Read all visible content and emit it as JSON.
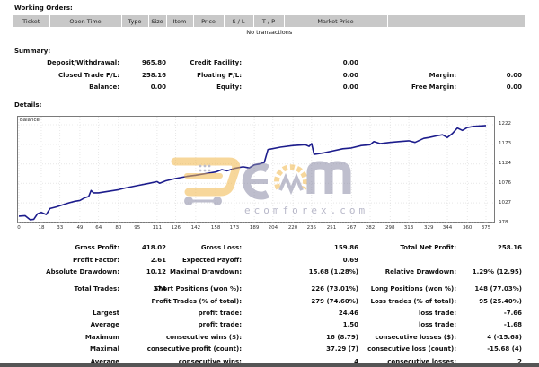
{
  "working_orders": {
    "title": "Working Orders:",
    "columns": [
      "Ticket",
      "Open Time",
      "Type",
      "Size",
      "Item",
      "Price",
      "S / L",
      "T / P",
      "Market Price",
      ""
    ],
    "empty_message": "No transactions"
  },
  "summary": {
    "title": "Summary:",
    "rows": [
      {
        "label": "Deposit/Withdrawal:",
        "value": "965.80",
        "label2": "Credit Facility:",
        "value2": "0.00",
        "label3": "",
        "value3": ""
      },
      {
        "label": "Closed Trade P/L:",
        "value": "258.16",
        "label2": "Floating P/L:",
        "value2": "0.00",
        "label3": "Margin:",
        "value3": "0.00"
      },
      {
        "label": "Balance:",
        "value": "0.00",
        "label2": "Equity:",
        "value2": "0.00",
        "label3": "Free Margin:",
        "value3": "0.00"
      }
    ]
  },
  "details": {
    "title": "Details:"
  },
  "chart_data": {
    "type": "line",
    "title": "Balance",
    "xlabel": "",
    "ylabel": "",
    "x_ticks": [
      0,
      18,
      33,
      49,
      64,
      80,
      95,
      111,
      126,
      142,
      158,
      173,
      189,
      204,
      220,
      235,
      251,
      267,
      282,
      298,
      313,
      329,
      344,
      360,
      375
    ],
    "y_ticks": [
      978,
      1027,
      1076,
      1124,
      1173,
      1222
    ],
    "ylim": [
      978,
      1240
    ],
    "xlim": [
      0,
      378
    ],
    "grid": true,
    "legend": "none",
    "series": [
      {
        "name": "Balance",
        "color": "#1c1c8c",
        "x": [
          0,
          5,
          9,
          12,
          15,
          18,
          22,
          25,
          30,
          33,
          40,
          45,
          49,
          53,
          56,
          58,
          60,
          64,
          72,
          80,
          85,
          95,
          105,
          111,
          113,
          118,
          126,
          135,
          142,
          150,
          158,
          163,
          167,
          173,
          180,
          185,
          189,
          193,
          197,
          200,
          210,
          220,
          230,
          233,
          235,
          237,
          245,
          251,
          260,
          267,
          275,
          282,
          285,
          290,
          298,
          305,
          313,
          318,
          325,
          329,
          335,
          340,
          344,
          348,
          352,
          356,
          360,
          365,
          375
        ],
        "values": [
          994,
          995,
          985,
          986,
          1000,
          1003,
          998,
          1013,
          1017,
          1020,
          1027,
          1031,
          1033,
          1040,
          1043,
          1058,
          1052,
          1052,
          1056,
          1060,
          1064,
          1070,
          1076,
          1080,
          1076,
          1082,
          1088,
          1093,
          1096,
          1100,
          1104,
          1110,
          1107,
          1113,
          1117,
          1114,
          1122,
          1124,
          1128,
          1160,
          1166,
          1170,
          1172,
          1168,
          1175,
          1148,
          1152,
          1156,
          1162,
          1164,
          1170,
          1172,
          1180,
          1175,
          1178,
          1180,
          1182,
          1178,
          1188,
          1190,
          1194,
          1197,
          1190,
          1200,
          1214,
          1208,
          1215,
          1218,
          1220
        ]
      }
    ]
  },
  "watermark": {
    "text": "ecomforex.com",
    "brand": "Ecom",
    "colors": {
      "accent": "#f2b84b",
      "gray": "#8a8aa6"
    }
  },
  "stats": {
    "rows": [
      {
        "l1": "Gross Profit:",
        "v1": "418.02",
        "l2": "Gross Loss:",
        "v2": "159.86",
        "l3": "Total Net Profit:",
        "v3": "258.16"
      },
      {
        "l1": "Profit Factor:",
        "v1": "2.61",
        "l2": "Expected Payoff:",
        "v2": "0.69",
        "l3": "",
        "v3": ""
      },
      {
        "l1": "Absolute Drawdown:",
        "v1": "10.12",
        "l2": "Maximal Drawdown:",
        "v2": "15.68 (1.28%)",
        "l3": "Relative Drawdown:",
        "v3": "1.29% (12.95)"
      },
      {
        "l1": "Total Trades:",
        "v1": "374",
        "l2": "Short Positions (won %):",
        "v2": "226 (73.01%)",
        "l3": "Long Positions (won %):",
        "v3": "148 (77.03%)"
      },
      {
        "l1": "",
        "v1": "",
        "l2": "Profit Trades (% of total):",
        "v2": "279 (74.60%)",
        "l3": "Loss trades (% of total):",
        "v3": "95 (25.40%)"
      },
      {
        "l1": "Largest",
        "v1": "",
        "l2": "profit trade:",
        "v2": "24.46",
        "l3": "loss trade:",
        "v3": "-7.66"
      },
      {
        "l1": "Average",
        "v1": "",
        "l2": "profit trade:",
        "v2": "1.50",
        "l3": "loss trade:",
        "v3": "-1.68"
      },
      {
        "l1": "Maximum",
        "v1": "",
        "l2": "consecutive wins ($):",
        "v2": "16 (8.79)",
        "l3": "consecutive losses ($):",
        "v3": "4 (-15.68)"
      },
      {
        "l1": "Maximal",
        "v1": "",
        "l2": "consecutive profit (count):",
        "v2": "37.29 (7)",
        "l3": "consecutive loss (count):",
        "v3": "-15.68 (4)"
      },
      {
        "l1": "Average",
        "v1": "",
        "l2": "consecutive wins:",
        "v2": "4",
        "l3": "consecutive losses:",
        "v3": "2"
      }
    ]
  }
}
